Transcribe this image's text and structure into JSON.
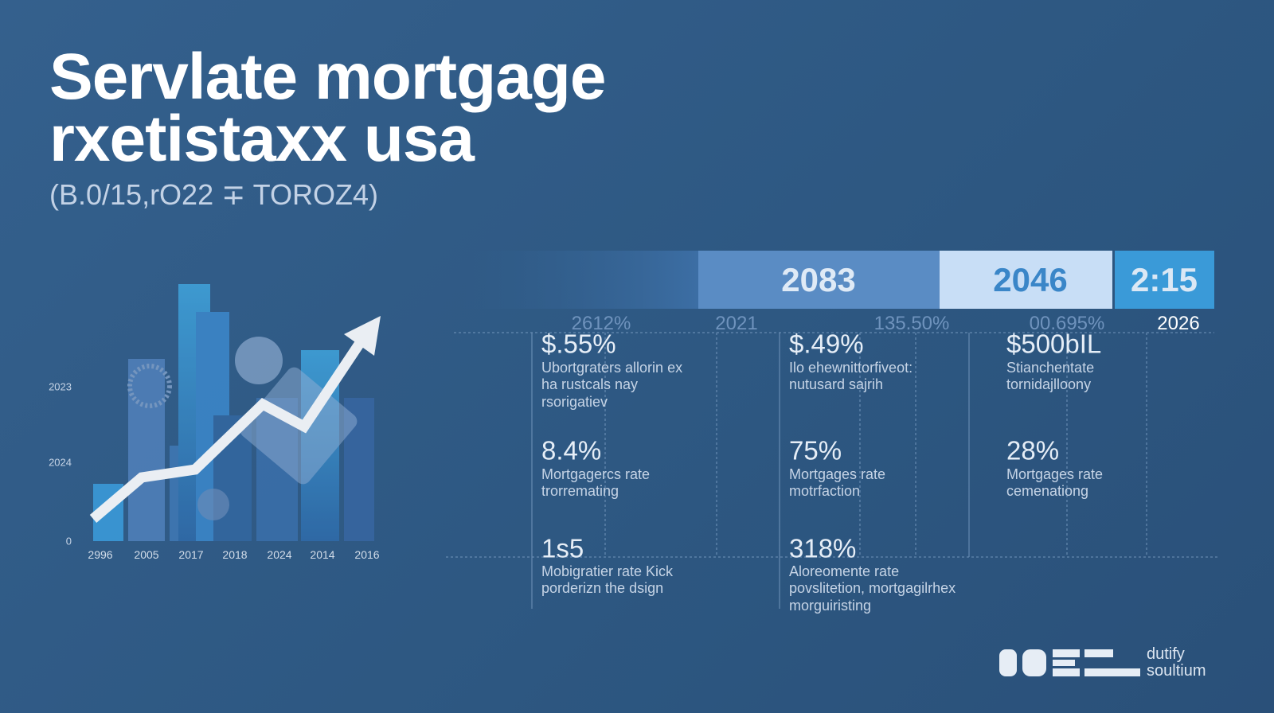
{
  "header": {
    "title_lines": [
      "Servlate mortgage",
      "rxetistaxx usa"
    ],
    "subtitle": "(B.0/15,rO22 ∓ TOROZ4)"
  },
  "left_chart": {
    "y_labels": [
      "2023",
      "2024",
      "0"
    ],
    "x_labels": [
      "2996",
      "2005",
      "2017",
      "2018",
      "2024",
      "2014",
      "2016"
    ]
  },
  "timeline": {
    "segments": [
      "2083",
      "2046",
      "2:15"
    ],
    "labels": [
      "2612%",
      "2021",
      "135.50%",
      "00.695%",
      "2026"
    ]
  },
  "stats": [
    [
      {
        "value": "$.55%",
        "lines": [
          "Ubortgraters allorin ex",
          "ha rustcals nay",
          "rsorigatiev"
        ]
      },
      {
        "value": "8.4%",
        "lines": [
          "Mortgagercs rate",
          "trorremating"
        ]
      },
      {
        "value": "1s5",
        "lines": [
          "Mobigratier rate Kick",
          "porderizn the dsign"
        ]
      }
    ],
    [
      {
        "value": "$.49%",
        "lines": [
          "Ilo ehewnittorfiveot:",
          "nutusard sajrih"
        ]
      },
      {
        "value": "75%",
        "lines": [
          "Mortgages rate",
          "motrfaction"
        ]
      },
      {
        "value": "318%",
        "lines": [
          "Aloreomente rate",
          "povslitetion, mortgagilrhex",
          "morguiristing"
        ]
      }
    ],
    [
      {
        "value": "$500bIL",
        "lines": [
          "Stianchentate",
          "tornidajlloony"
        ]
      },
      {
        "value": "28%",
        "lines": [
          "Mortgages rate",
          "cemenationg"
        ]
      }
    ]
  ],
  "logo": {
    "lines": [
      "dutify",
      "soultium"
    ]
  }
}
